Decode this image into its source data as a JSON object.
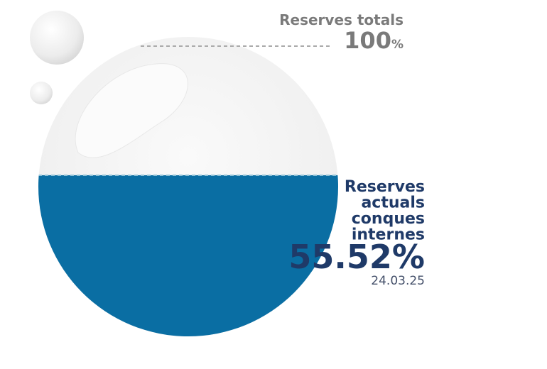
{
  "chart_data": {
    "type": "liquid",
    "total_title": "Reserves totals",
    "total": 100,
    "unit": "%",
    "label_lines": [
      "Reserves",
      "actuals",
      "conques",
      "internes"
    ],
    "value": 55.52,
    "value_label": "55.52%",
    "date": "24.03.25",
    "ylim": [
      0,
      100
    ],
    "colors": {
      "water": "#0a6ea3",
      "title": "#1f3a68",
      "total": "#7a7a7a"
    }
  }
}
